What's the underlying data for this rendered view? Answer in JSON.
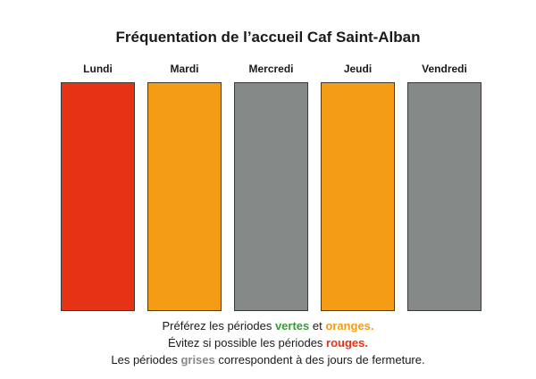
{
  "title": "Fréquentation de l’accueil Caf Saint-Alban",
  "colors": {
    "rouge": "#e63316",
    "orange": "#f39c14",
    "gris": "#858988",
    "vert": "#3a9a3a",
    "text": "#1a1a1a"
  },
  "chart_data": {
    "type": "table",
    "title": "Fréquentation de l’accueil Caf Saint-Alban",
    "categories": [
      "Lundi",
      "Mardi",
      "Mercredi",
      "Jeudi",
      "Vendredi"
    ],
    "status": [
      "rouge",
      "orange",
      "gris",
      "orange",
      "gris"
    ]
  },
  "legend": {
    "line1": {
      "prefix": "Préférez les périodes ",
      "green": "vertes",
      "mid": " et ",
      "orange": "oranges."
    },
    "line2": {
      "prefix": "Évitez si possible les périodes ",
      "red": "rouges."
    },
    "line3": {
      "prefix": "Les périodes ",
      "grey": "grises",
      "suffix": " correspondent à des jours de fermeture."
    }
  }
}
